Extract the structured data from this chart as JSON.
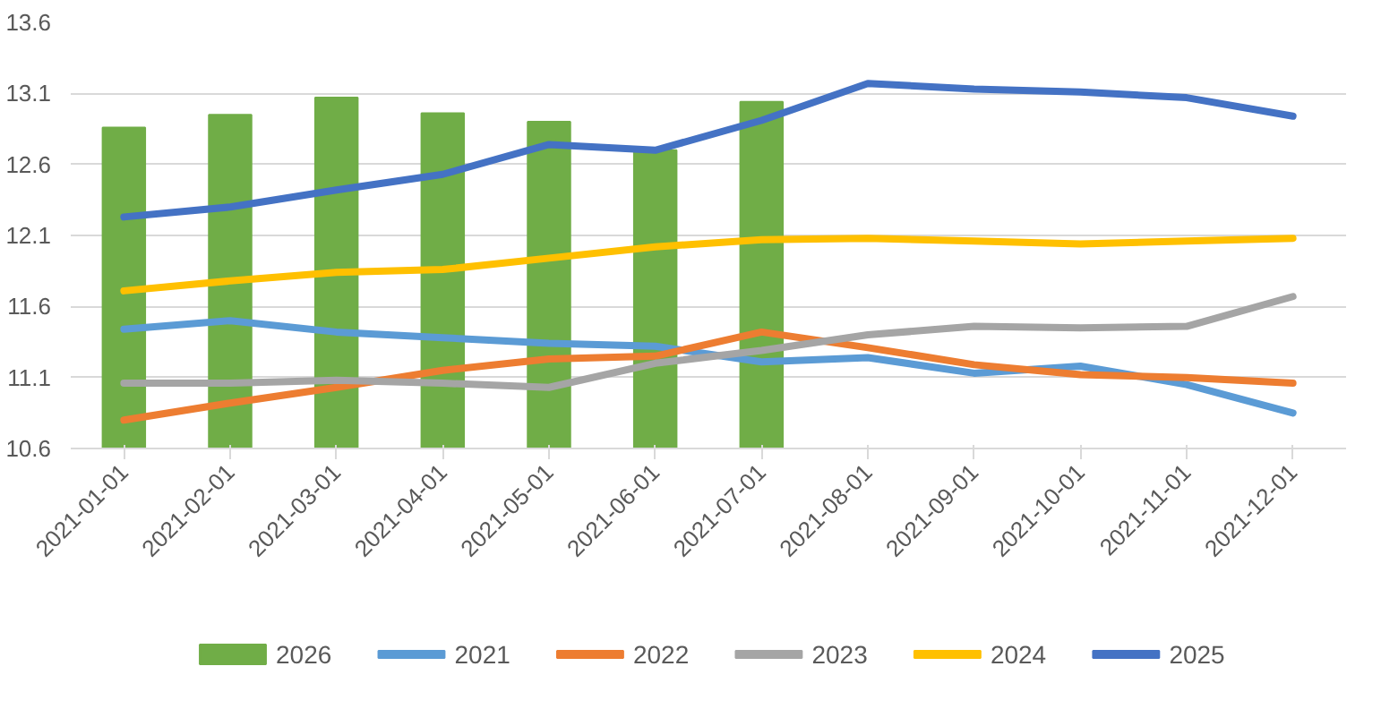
{
  "chart_data": {
    "type": "line",
    "categories": [
      "2021-01-01",
      "2021-02-01",
      "2021-03-01",
      "2021-04-01",
      "2021-05-01",
      "2021-06-01",
      "2021-07-01",
      "2021-08-01",
      "2021-09-01",
      "2021-10-01",
      "2021-11-01",
      "2021-12-01"
    ],
    "ylim": [
      10.6,
      13.6
    ],
    "yticks": [
      10.6,
      11.1,
      11.6,
      12.1,
      12.6,
      13.1,
      13.6
    ],
    "grid": "y",
    "legend": "bottom",
    "series": [
      {
        "name": "2026",
        "type": "bar",
        "color": "#70ad47",
        "values": [
          12.86,
          12.95,
          13.07,
          12.96,
          12.9,
          12.7,
          13.04,
          null,
          null,
          null,
          null,
          null
        ]
      },
      {
        "name": "2021",
        "color": "#5b9bd5",
        "values": [
          11.44,
          11.5,
          11.42,
          11.38,
          11.34,
          11.32,
          11.21,
          11.24,
          11.13,
          11.18,
          11.05,
          10.85
        ]
      },
      {
        "name": "2022",
        "color": "#ed7d31",
        "values": [
          10.8,
          10.92,
          11.03,
          11.15,
          11.23,
          11.25,
          11.42,
          11.31,
          11.19,
          11.12,
          11.1,
          11.06
        ]
      },
      {
        "name": "2023",
        "color": "#a5a5a5",
        "values": [
          11.06,
          11.06,
          11.08,
          11.06,
          11.03,
          11.2,
          11.29,
          11.4,
          11.46,
          11.45,
          11.46,
          11.67
        ]
      },
      {
        "name": "2024",
        "color": "#ffc000",
        "values": [
          11.71,
          11.78,
          11.84,
          11.86,
          11.94,
          12.02,
          12.07,
          12.08,
          12.06,
          12.04,
          12.06,
          12.08
        ]
      },
      {
        "name": "2025",
        "color": "#4472c4",
        "values": [
          12.23,
          12.3,
          12.42,
          12.53,
          12.74,
          12.7,
          12.91,
          13.17,
          13.13,
          13.11,
          13.07,
          12.94
        ]
      }
    ]
  }
}
